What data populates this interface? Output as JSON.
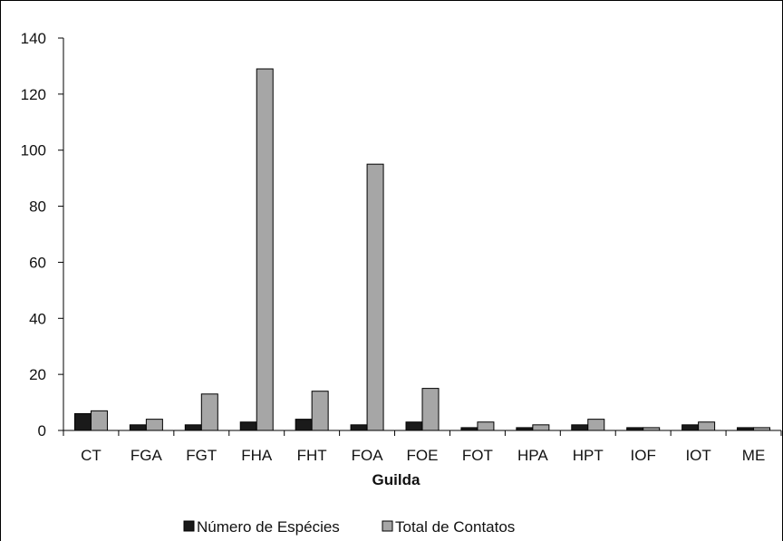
{
  "chart_data": {
    "type": "bar",
    "xlabel": "Guilda",
    "ylabel": "",
    "ylim": [
      0,
      140
    ],
    "yticks": [
      0,
      20,
      40,
      60,
      80,
      100,
      120,
      140
    ],
    "grid": false,
    "legend_position": "bottom",
    "categories": [
      "CT",
      "FGA",
      "FGT",
      "FHA",
      "FHT",
      "FOA",
      "FOE",
      "FOT",
      "HPA",
      "HPT",
      "IOF",
      "IOT",
      "ME"
    ],
    "series": [
      {
        "name": "Número de Espécies",
        "color": "#1a1a1a",
        "values": [
          6,
          2,
          2,
          3,
          4,
          2,
          3,
          1,
          1,
          2,
          1,
          2,
          1
        ]
      },
      {
        "name": "Total de Contatos",
        "color": "#a6a6a6",
        "values": [
          7,
          4,
          13,
          129,
          14,
          95,
          15,
          3,
          2,
          4,
          1,
          3,
          1
        ]
      }
    ]
  }
}
